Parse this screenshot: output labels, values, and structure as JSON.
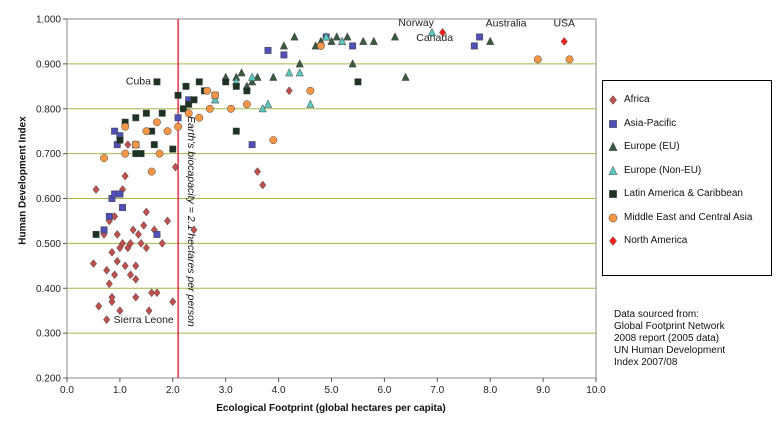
{
  "chart_data": {
    "type": "scatter",
    "xlabel": "Ecological Footprint (global hectares per capita)",
    "ylabel": "Human Development Index",
    "xlim": [
      0,
      10
    ],
    "ylim": [
      0.2,
      1.0
    ],
    "x_ticks": [
      "0.0",
      "1.0",
      "2.0",
      "3.0",
      "4.0",
      "5.0",
      "6.0",
      "7.0",
      "8.0",
      "9.0",
      "10.0"
    ],
    "y_ticks": [
      "0.200",
      "0.300",
      "0.400",
      "0.500",
      "0.600",
      "0.700",
      "0.800",
      "0.900",
      "1.000"
    ],
    "grid": "horizontal",
    "legend_position": "right",
    "reference_line": {
      "x": 2.1,
      "label": "Earth's biocapacity = 2.1 hectares per person",
      "color": "#e0001b"
    },
    "annotations": [
      {
        "text": "Norway",
        "x": 6.6,
        "y": 0.984
      },
      {
        "text": "Canada",
        "x": 6.95,
        "y": 0.951
      },
      {
        "text": "Australia",
        "x": 8.3,
        "y": 0.983
      },
      {
        "text": "USA",
        "x": 9.4,
        "y": 0.983
      },
      {
        "text": "Cuba",
        "x": 1.35,
        "y": 0.854
      },
      {
        "text": "Sierra Leone",
        "x": 1.45,
        "y": 0.323
      }
    ],
    "series": [
      {
        "name": "Africa",
        "marker": "diamond",
        "color": "#c0504d",
        "points": [
          [
            0.5,
            0.455
          ],
          [
            0.55,
            0.62
          ],
          [
            0.6,
            0.36
          ],
          [
            0.7,
            0.52
          ],
          [
            0.75,
            0.44
          ],
          [
            0.75,
            0.33
          ],
          [
            0.8,
            0.41
          ],
          [
            0.85,
            0.37
          ],
          [
            0.85,
            0.38
          ],
          [
            0.85,
            0.48
          ],
          [
            0.9,
            0.43
          ],
          [
            0.95,
            0.52
          ],
          [
            0.95,
            0.46
          ],
          [
            1.0,
            0.49
          ],
          [
            1.0,
            0.35
          ],
          [
            1.05,
            0.5
          ],
          [
            1.05,
            0.62
          ],
          [
            1.1,
            0.45
          ],
          [
            1.1,
            0.65
          ],
          [
            1.15,
            0.49
          ],
          [
            1.2,
            0.43
          ],
          [
            1.2,
            0.5
          ],
          [
            1.25,
            0.53
          ],
          [
            1.3,
            0.45
          ],
          [
            1.3,
            0.42
          ],
          [
            1.3,
            0.38
          ],
          [
            1.35,
            0.52
          ],
          [
            1.4,
            0.5
          ],
          [
            1.45,
            0.54
          ],
          [
            1.5,
            0.49
          ],
          [
            1.55,
            0.35
          ],
          [
            1.6,
            0.39
          ],
          [
            1.65,
            0.53
          ],
          [
            1.7,
            0.39
          ],
          [
            1.8,
            0.5
          ],
          [
            1.9,
            0.55
          ],
          [
            2.0,
            0.37
          ],
          [
            2.05,
            0.67
          ],
          [
            2.4,
            0.53
          ],
          [
            3.6,
            0.66
          ],
          [
            3.7,
            0.63
          ],
          [
            4.2,
            0.84
          ],
          [
            0.9,
            0.56
          ],
          [
            1.15,
            0.72
          ],
          [
            1.5,
            0.57
          ],
          [
            0.8,
            0.55
          ]
        ]
      },
      {
        "name": "Asia-Pacific",
        "marker": "square",
        "color": "#4f4fb8",
        "points": [
          [
            0.7,
            0.53
          ],
          [
            0.8,
            0.56
          ],
          [
            0.85,
            0.6
          ],
          [
            0.9,
            0.61
          ],
          [
            0.9,
            0.75
          ],
          [
            0.95,
            0.72
          ],
          [
            1.0,
            0.74
          ],
          [
            1.0,
            0.61
          ],
          [
            1.05,
            0.58
          ],
          [
            1.3,
            0.72
          ],
          [
            1.7,
            0.52
          ],
          [
            2.3,
            0.82
          ],
          [
            3.5,
            0.72
          ],
          [
            3.8,
            0.93
          ],
          [
            4.1,
            0.92
          ],
          [
            4.9,
            0.96
          ],
          [
            5.4,
            0.94
          ],
          [
            7.7,
            0.94
          ],
          [
            7.8,
            0.96
          ],
          [
            2.1,
            0.78
          ]
        ]
      },
      {
        "name": "Europe (EU)",
        "marker": "triangle",
        "color": "#3a5a40",
        "points": [
          [
            2.8,
            0.82
          ],
          [
            3.0,
            0.87
          ],
          [
            3.2,
            0.87
          ],
          [
            3.3,
            0.88
          ],
          [
            3.5,
            0.86
          ],
          [
            3.6,
            0.87
          ],
          [
            3.9,
            0.87
          ],
          [
            4.1,
            0.94
          ],
          [
            4.3,
            0.96
          ],
          [
            4.4,
            0.9
          ],
          [
            4.8,
            0.95
          ],
          [
            4.9,
            0.96
          ],
          [
            5.0,
            0.95
          ],
          [
            5.1,
            0.96
          ],
          [
            5.2,
            0.95
          ],
          [
            5.3,
            0.96
          ],
          [
            5.4,
            0.9
          ],
          [
            5.6,
            0.95
          ],
          [
            5.8,
            0.95
          ],
          [
            6.2,
            0.96
          ],
          [
            6.4,
            0.87
          ],
          [
            8.0,
            0.95
          ],
          [
            3.4,
            0.85
          ],
          [
            4.7,
            0.94
          ]
        ]
      },
      {
        "name": "Europe (Non-EU)",
        "marker": "triangle",
        "color": "#5bc8c0",
        "points": [
          [
            1.3,
            0.72
          ],
          [
            2.8,
            0.82
          ],
          [
            3.2,
            0.86
          ],
          [
            3.5,
            0.87
          ],
          [
            3.7,
            0.8
          ],
          [
            3.8,
            0.81
          ],
          [
            4.2,
            0.88
          ],
          [
            4.4,
            0.88
          ],
          [
            4.6,
            0.81
          ],
          [
            4.9,
            0.96
          ],
          [
            5.2,
            0.95
          ],
          [
            6.9,
            0.97
          ]
        ]
      },
      {
        "name": "Latin America & Caribbean",
        "marker": "square",
        "color": "#1b3320",
        "points": [
          [
            0.55,
            0.52
          ],
          [
            1.0,
            0.73
          ],
          [
            1.1,
            0.77
          ],
          [
            1.3,
            0.78
          ],
          [
            1.4,
            0.7
          ],
          [
            1.5,
            0.79
          ],
          [
            1.6,
            0.75
          ],
          [
            1.65,
            0.72
          ],
          [
            1.8,
            0.79
          ],
          [
            2.0,
            0.71
          ],
          [
            2.1,
            0.83
          ],
          [
            2.2,
            0.8
          ],
          [
            2.25,
            0.85
          ],
          [
            2.3,
            0.81
          ],
          [
            2.4,
            0.82
          ],
          [
            2.6,
            0.84
          ],
          [
            2.8,
            0.83
          ],
          [
            3.0,
            0.86
          ],
          [
            3.2,
            0.85
          ],
          [
            3.2,
            0.75
          ],
          [
            3.4,
            0.84
          ],
          [
            5.5,
            0.86
          ],
          [
            1.7,
            0.86
          ],
          [
            1.3,
            0.7
          ],
          [
            2.5,
            0.86
          ]
        ]
      },
      {
        "name": "Middle East and Central Asia",
        "marker": "circle",
        "color": "#f79646",
        "points": [
          [
            0.7,
            0.69
          ],
          [
            1.1,
            0.76
          ],
          [
            1.1,
            0.7
          ],
          [
            1.3,
            0.72
          ],
          [
            1.5,
            0.75
          ],
          [
            1.7,
            0.77
          ],
          [
            1.75,
            0.7
          ],
          [
            1.9,
            0.75
          ],
          [
            2.1,
            0.76
          ],
          [
            2.3,
            0.79
          ],
          [
            2.5,
            0.78
          ],
          [
            2.7,
            0.8
          ],
          [
            2.8,
            0.83
          ],
          [
            3.1,
            0.8
          ],
          [
            3.4,
            0.81
          ],
          [
            3.9,
            0.73
          ],
          [
            4.6,
            0.84
          ],
          [
            4.8,
            0.94
          ],
          [
            8.9,
            0.91
          ],
          [
            9.5,
            0.91
          ],
          [
            2.65,
            0.84
          ],
          [
            1.6,
            0.66
          ]
        ]
      },
      {
        "name": "North America",
        "marker": "diamond",
        "color": "#ff2020",
        "points": [
          [
            7.1,
            0.97
          ],
          [
            9.4,
            0.95
          ]
        ]
      }
    ]
  },
  "source_note": [
    "Data sourced from:",
    "Global Footprint Network",
    "2008 report (2005 data)",
    "UN Human Development",
    "Index 2007/08"
  ]
}
